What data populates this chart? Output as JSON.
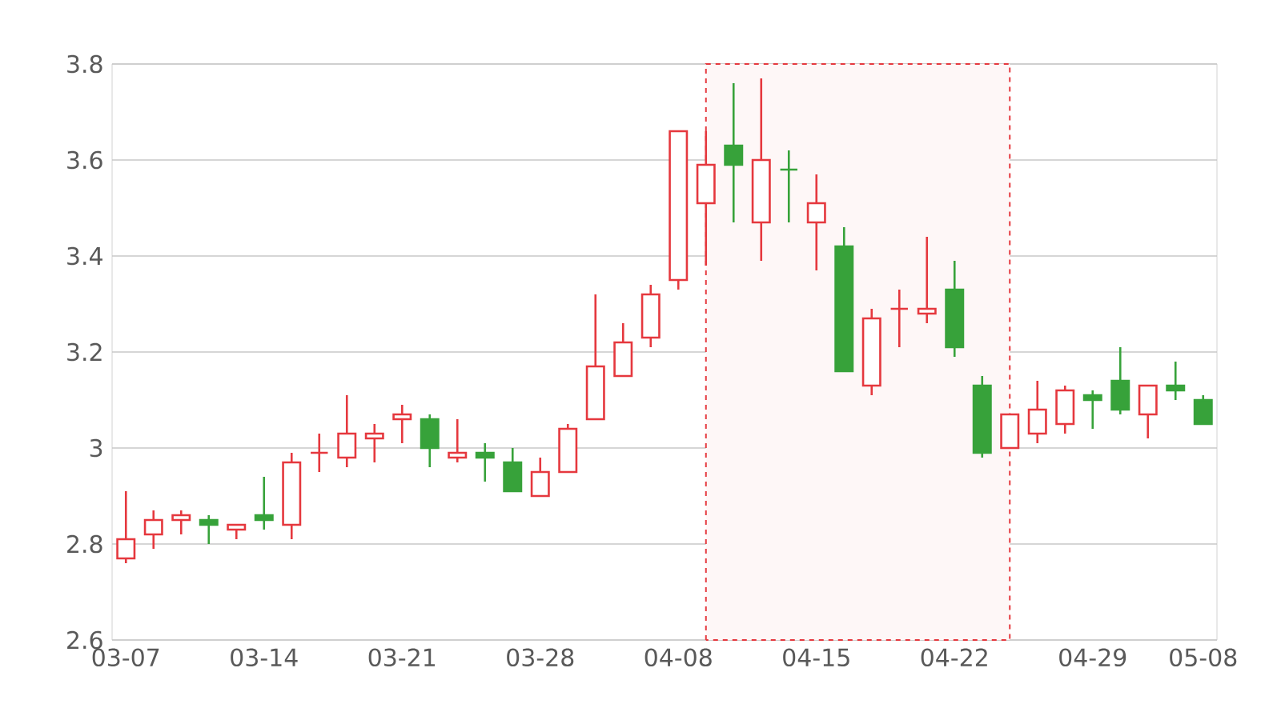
{
  "chart_data": {
    "type": "candlestick",
    "categories": [
      "03-07",
      null,
      null,
      null,
      null,
      "03-14",
      null,
      null,
      null,
      null,
      "03-21",
      null,
      null,
      null,
      null,
      "03-28",
      null,
      null,
      null,
      null,
      "04-08",
      null,
      null,
      null,
      null,
      "04-15",
      null,
      null,
      null,
      null,
      "04-22",
      null,
      null,
      null,
      null,
      "04-29",
      null,
      null,
      null,
      "05-08"
    ],
    "ohlc": [
      [
        2.77,
        2.91,
        2.76,
        2.81
      ],
      [
        2.82,
        2.87,
        2.79,
        2.85
      ],
      [
        2.85,
        2.87,
        2.82,
        2.86
      ],
      [
        2.85,
        2.86,
        2.8,
        2.84
      ],
      [
        2.83,
        2.84,
        2.81,
        2.84
      ],
      [
        2.86,
        2.94,
        2.83,
        2.85
      ],
      [
        2.84,
        2.99,
        2.81,
        2.97
      ],
      [
        2.99,
        3.03,
        2.95,
        2.99
      ],
      [
        2.98,
        3.11,
        2.96,
        3.03
      ],
      [
        3.02,
        3.05,
        2.97,
        3.03
      ],
      [
        3.06,
        3.09,
        3.01,
        3.07
      ],
      [
        3.06,
        3.07,
        2.96,
        3.0
      ],
      [
        2.98,
        3.06,
        2.97,
        2.99
      ],
      [
        2.99,
        3.01,
        2.93,
        2.98
      ],
      [
        2.97,
        3.0,
        2.91,
        2.91
      ],
      [
        2.9,
        2.98,
        2.9,
        2.95
      ],
      [
        2.95,
        3.05,
        2.95,
        3.04
      ],
      [
        3.06,
        3.32,
        3.06,
        3.17
      ],
      [
        3.15,
        3.26,
        3.15,
        3.22
      ],
      [
        3.23,
        3.34,
        3.21,
        3.32
      ],
      [
        3.35,
        3.66,
        3.33,
        3.66
      ],
      [
        3.51,
        3.66,
        3.38,
        3.59
      ],
      [
        3.63,
        3.76,
        3.47,
        3.59
      ],
      [
        3.47,
        3.77,
        3.39,
        3.6
      ],
      [
        3.58,
        3.62,
        3.47,
        3.58
      ],
      [
        3.47,
        3.57,
        3.37,
        3.51
      ],
      [
        3.42,
        3.46,
        3.16,
        3.16
      ],
      [
        3.13,
        3.29,
        3.11,
        3.27
      ],
      [
        3.29,
        3.33,
        3.21,
        3.29
      ],
      [
        3.28,
        3.44,
        3.26,
        3.29
      ],
      [
        3.33,
        3.39,
        3.19,
        3.21
      ],
      [
        3.13,
        3.15,
        2.98,
        2.99
      ],
      [
        3.0,
        3.07,
        3.0,
        3.07
      ],
      [
        3.03,
        3.14,
        3.01,
        3.08
      ],
      [
        3.05,
        3.13,
        3.03,
        3.12
      ],
      [
        3.11,
        3.12,
        3.04,
        3.1
      ],
      [
        3.14,
        3.21,
        3.07,
        3.08
      ],
      [
        3.07,
        3.13,
        3.02,
        3.13
      ],
      [
        3.13,
        3.18,
        3.1,
        3.12
      ],
      [
        3.1,
        3.11,
        3.05,
        3.05
      ]
    ],
    "colors": [
      "#e5383e",
      "#e5383e",
      "#e5383e",
      "#37a23a",
      "#e5383e",
      "#37a23a",
      "#e5383e",
      "#e5383e",
      "#e5383e",
      "#e5383e",
      "#e5383e",
      "#37a23a",
      "#e5383e",
      "#37a23a",
      "#37a23a",
      "#e5383e",
      "#e5383e",
      "#e5383e",
      "#e5383e",
      "#e5383e",
      "#e5383e",
      "#e5383e",
      "#37a23a",
      "#e5383e",
      "#37a23a",
      "#e5383e",
      "#37a23a",
      "#e5383e",
      "#e5383e",
      "#e5383e",
      "#37a23a",
      "#37a23a",
      "#e5383e",
      "#e5383e",
      "#e5383e",
      "#37a23a",
      "#37a23a",
      "#e5383e",
      "#37a23a",
      "#37a23a"
    ],
    "ylim": [
      2.6,
      3.8
    ],
    "yticks": [
      2.6,
      2.8,
      3,
      3.2,
      3.4,
      3.6,
      3.8
    ],
    "grid": "y"
  }
}
